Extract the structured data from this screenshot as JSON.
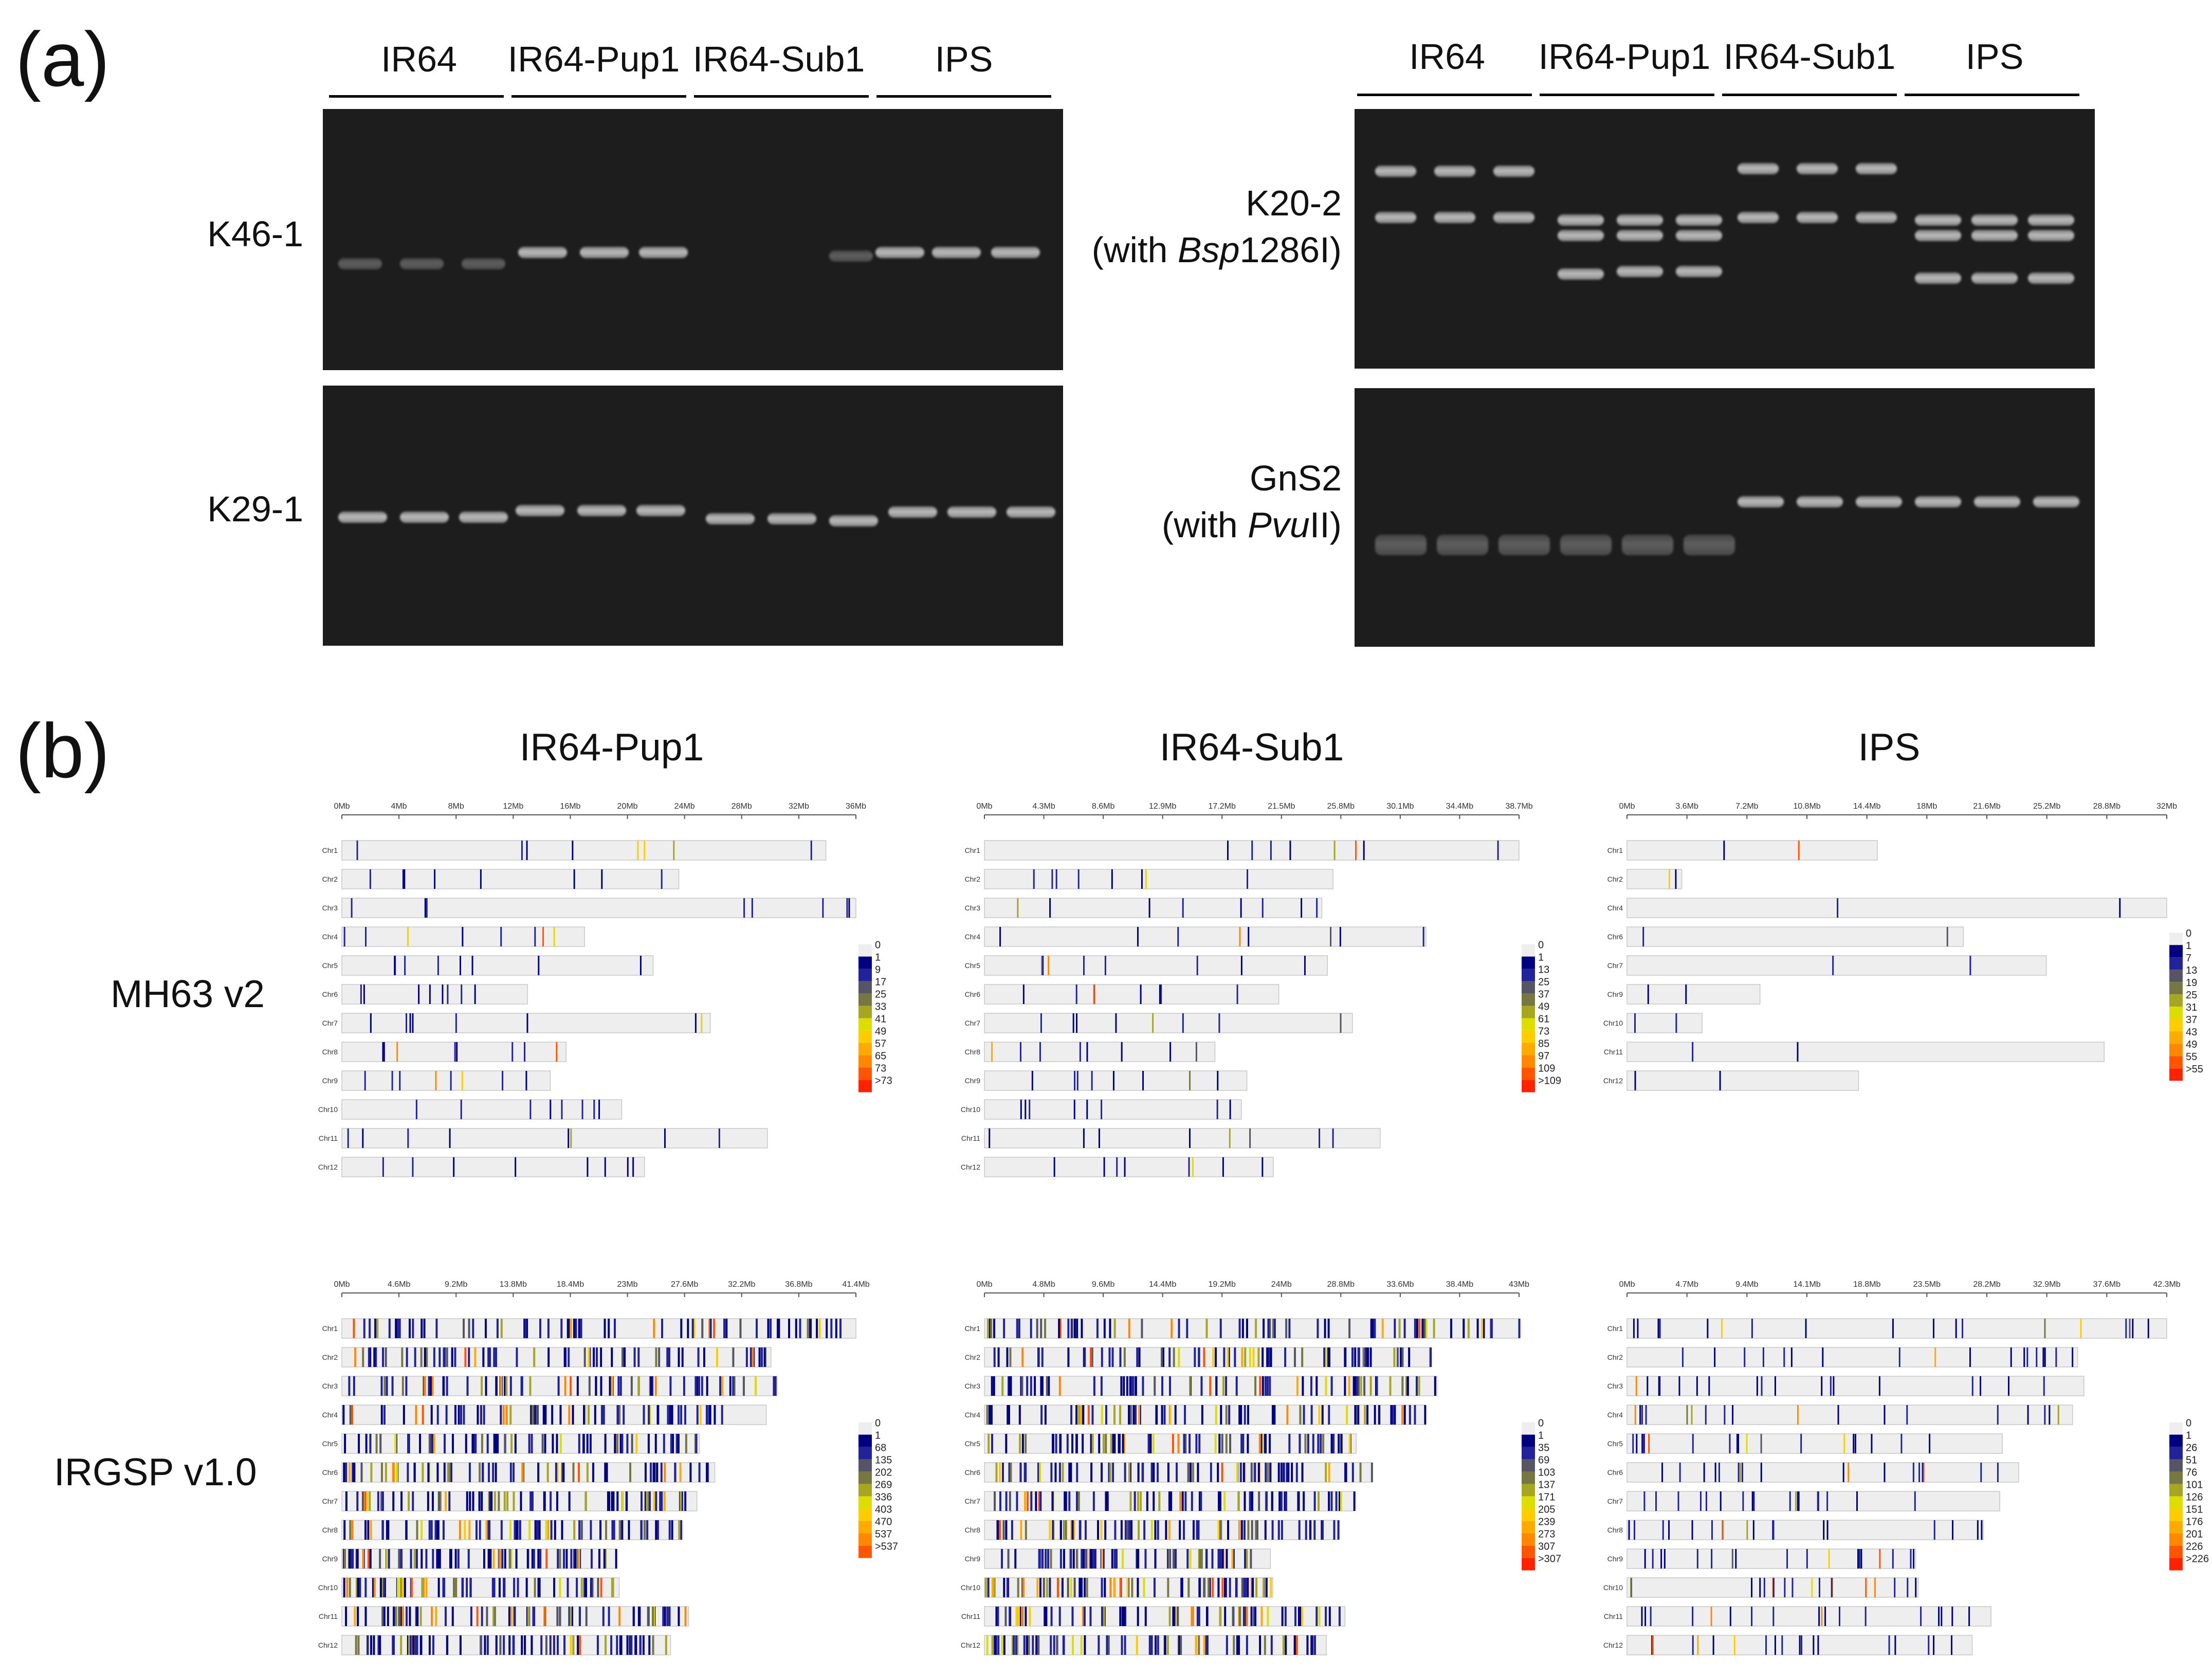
{
  "panel_a": {
    "letter": "(a)",
    "lane_groups": [
      "IR64",
      "IR64-Pup1",
      "IR64-Sub1",
      "IPS"
    ],
    "markers": {
      "K46_1": {
        "name": "K46-1"
      },
      "K29_1": {
        "name": "K29-1"
      },
      "K20_2": {
        "name": "K20-2",
        "enzyme_prefix": "(with ",
        "enzyme": "Bsp",
        "enzyme_suffix": "1286I)"
      },
      "GnS2": {
        "name": "GnS2",
        "enzyme_prefix": "(with ",
        "enzyme": "Pvu",
        "enzyme_suffix": "II)"
      }
    }
  },
  "panel_b": {
    "letter": "(b)",
    "columns": [
      "IR64-Pup1",
      "IR64-Sub1",
      "IPS"
    ],
    "rows": [
      "MH63 v2",
      "IRGSP v1.0"
    ],
    "chromosomes": [
      "Chr1",
      "Chr2",
      "Chr3",
      "Chr4",
      "Chr5",
      "Chr6",
      "Chr7",
      "Chr8",
      "Chr9",
      "Chr10",
      "Chr11",
      "Chr12"
    ],
    "legend_colors": [
      "#eeeeee",
      "#000080",
      "#22229a",
      "#555566",
      "#777744",
      "#a6a620",
      "#dddd00",
      "#ffcc00",
      "#ffaa00",
      "#ff8800",
      "#ff5500",
      "#ff2200",
      "#ee0000"
    ],
    "maps": [
      {
        "id": "mh63-pup1",
        "axis": [
          "0Mb",
          "4Mb",
          "8Mb",
          "12Mb",
          "16Mb",
          "20Mb",
          "24Mb",
          "28Mb",
          "32Mb",
          "36Mb"
        ],
        "chr_ids": [
          "Chr1",
          "Chr2",
          "Chr3",
          "Chr4",
          "Chr5",
          "Chr6",
          "Chr7",
          "Chr8",
          "Chr9",
          "Chr10",
          "Chr11",
          "Chr12"
        ],
        "legend": [
          "0",
          "1",
          "9",
          "17",
          "25",
          "33",
          "41",
          "49",
          "57",
          "65",
          "73",
          ">73"
        ],
        "lengths": [
          33.9,
          23.6,
          36,
          17,
          21.8,
          13,
          25.8,
          15.7,
          14.6,
          19.6,
          29.8,
          21.2
        ],
        "density": "low"
      },
      {
        "id": "mh63-sub1",
        "axis": [
          "0Mb",
          "4.3Mb",
          "8.6Mb",
          "12.9Mb",
          "17.2Mb",
          "21.5Mb",
          "25.8Mb",
          "30.1Mb",
          "34.4Mb",
          "38.7Mb"
        ],
        "chr_ids": [
          "Chr1",
          "Chr2",
          "Chr3",
          "Chr4",
          "Chr5",
          "Chr6",
          "Chr7",
          "Chr8",
          "Chr9",
          "Chr10",
          "Chr11",
          "Chr12"
        ],
        "legend": [
          "0",
          "1",
          "13",
          "25",
          "37",
          "49",
          "61",
          "73",
          "85",
          "97",
          "109",
          ">109"
        ],
        "lengths": [
          38.5,
          25.1,
          24.3,
          31.8,
          24.7,
          21.2,
          26.5,
          16.6,
          18.9,
          18.5,
          28.5,
          20.8
        ],
        "density": "low"
      },
      {
        "id": "mh63-ips",
        "axis": [
          "0Mb",
          "3.6Mb",
          "7.2Mb",
          "10.8Mb",
          "14.4Mb",
          "18Mb",
          "21.6Mb",
          "25.2Mb",
          "28.8Mb",
          "32Mb"
        ],
        "chr_ids": [
          "Chr1",
          "Chr2",
          "Chr4",
          "Chr6",
          "Chr7",
          "Chr9",
          "Chr10",
          "Chr11",
          "Chr12"
        ],
        "legend": [
          "0",
          "1",
          "7",
          "13",
          "19",
          "25",
          "31",
          "37",
          "43",
          "49",
          "55",
          ">55"
        ],
        "lengths": [
          16,
          3.5,
          34.5,
          21.5,
          26.8,
          8.5,
          4.8,
          30.5,
          14.8
        ],
        "density": "sparse"
      },
      {
        "id": "irgsp-pup1",
        "axis": [
          "0Mb",
          "4.6Mb",
          "9.2Mb",
          "13.8Mb",
          "18.4Mb",
          "23Mb",
          "27.6Mb",
          "32.2Mb",
          "36.8Mb",
          "41.4Mb"
        ],
        "chr_ids": [
          "Chr1",
          "Chr2",
          "Chr3",
          "Chr4",
          "Chr5",
          "Chr6",
          "Chr7",
          "Chr8",
          "Chr9",
          "Chr10",
          "Chr11",
          "Chr12"
        ],
        "legend": [
          "0",
          "1",
          "68",
          "135",
          "202",
          "269",
          "336",
          "403",
          "470",
          "537",
          ">537"
        ],
        "lengths": [
          43,
          35.9,
          36.4,
          35.5,
          29.9,
          31.2,
          29.7,
          28.4,
          23,
          23.2,
          29,
          27.5
        ],
        "density": "high"
      },
      {
        "id": "irgsp-sub1",
        "axis": [
          "0Mb",
          "4.8Mb",
          "9.6Mb",
          "14.4Mb",
          "19.2Mb",
          "24Mb",
          "28.8Mb",
          "33.6Mb",
          "38.4Mb",
          "43Mb"
        ],
        "chr_ids": [
          "Chr1",
          "Chr2",
          "Chr3",
          "Chr4",
          "Chr5",
          "Chr6",
          "Chr7",
          "Chr8",
          "Chr9",
          "Chr10",
          "Chr11",
          "Chr12"
        ],
        "legend": [
          "0",
          "1",
          "35",
          "69",
          "103",
          "137",
          "171",
          "205",
          "239",
          "273",
          "307",
          ">307"
        ],
        "lengths": [
          43,
          35.9,
          36.4,
          35.5,
          29.9,
          31.2,
          29.7,
          28.4,
          23,
          23.2,
          29,
          27.5
        ],
        "density": "high"
      },
      {
        "id": "irgsp-ips",
        "axis": [
          "0Mb",
          "4.7Mb",
          "9.4Mb",
          "14.1Mb",
          "18.8Mb",
          "23.5Mb",
          "28.2Mb",
          "32.9Mb",
          "37.6Mb",
          "42.3Mb"
        ],
        "chr_ids": [
          "Chr1",
          "Chr2",
          "Chr3",
          "Chr4",
          "Chr5",
          "Chr6",
          "Chr7",
          "Chr8",
          "Chr9",
          "Chr10",
          "Chr11",
          "Chr12"
        ],
        "legend": [
          "0",
          "1",
          "26",
          "51",
          "76",
          "101",
          "126",
          "151",
          "176",
          "201",
          "226",
          ">226"
        ],
        "lengths": [
          43,
          35.9,
          36.4,
          35.5,
          29.9,
          31.2,
          29.7,
          28.4,
          23,
          23.2,
          29,
          27.5
        ],
        "density": "medium"
      }
    ]
  }
}
